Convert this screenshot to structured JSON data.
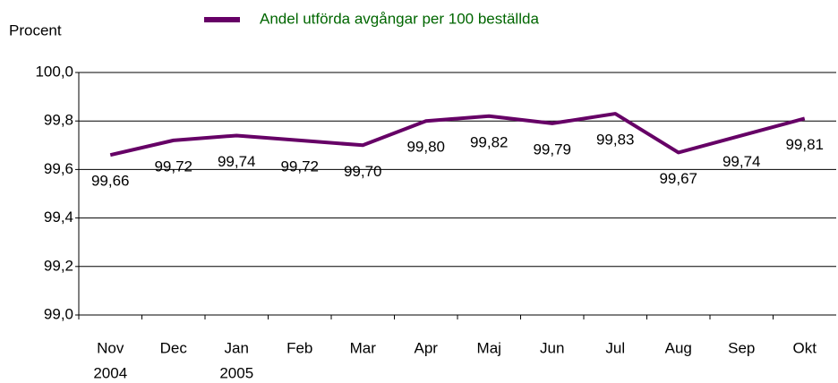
{
  "chart_data": {
    "type": "line",
    "y_label": "Procent",
    "categories": [
      "Nov",
      "Dec",
      "Jan",
      "Feb",
      "Mar",
      "Apr",
      "Maj",
      "Jun",
      "Jul",
      "Aug",
      "Sep",
      "Okt"
    ],
    "category_years": [
      "2004",
      null,
      "2005",
      null,
      null,
      null,
      null,
      null,
      null,
      null,
      null,
      null
    ],
    "series": [
      {
        "name": "Andel utförda avgångar per 100 beställda",
        "color": "#660066",
        "values": [
          99.66,
          99.72,
          99.74,
          99.72,
          99.7,
          99.8,
          99.82,
          99.79,
          99.83,
          99.67,
          99.74,
          99.81
        ],
        "value_labels": [
          "99,66",
          "99,72",
          "99,74",
          "99,72",
          "99,70",
          "99,80",
          "99,82",
          "99,79",
          "99,83",
          "99,67",
          "99,74",
          "99,81"
        ]
      }
    ],
    "legend_color": "#006600",
    "ylim": [
      99.0,
      100.0
    ],
    "yticks": [
      {
        "value": 99.0,
        "label": "99,0"
      },
      {
        "value": 99.2,
        "label": "99,2"
      },
      {
        "value": 99.4,
        "label": "99,4"
      },
      {
        "value": 99.6,
        "label": "99,6"
      },
      {
        "value": 99.8,
        "label": "99,8"
      },
      {
        "value": 100.0,
        "label": "100,0"
      }
    ],
    "grid": true
  }
}
